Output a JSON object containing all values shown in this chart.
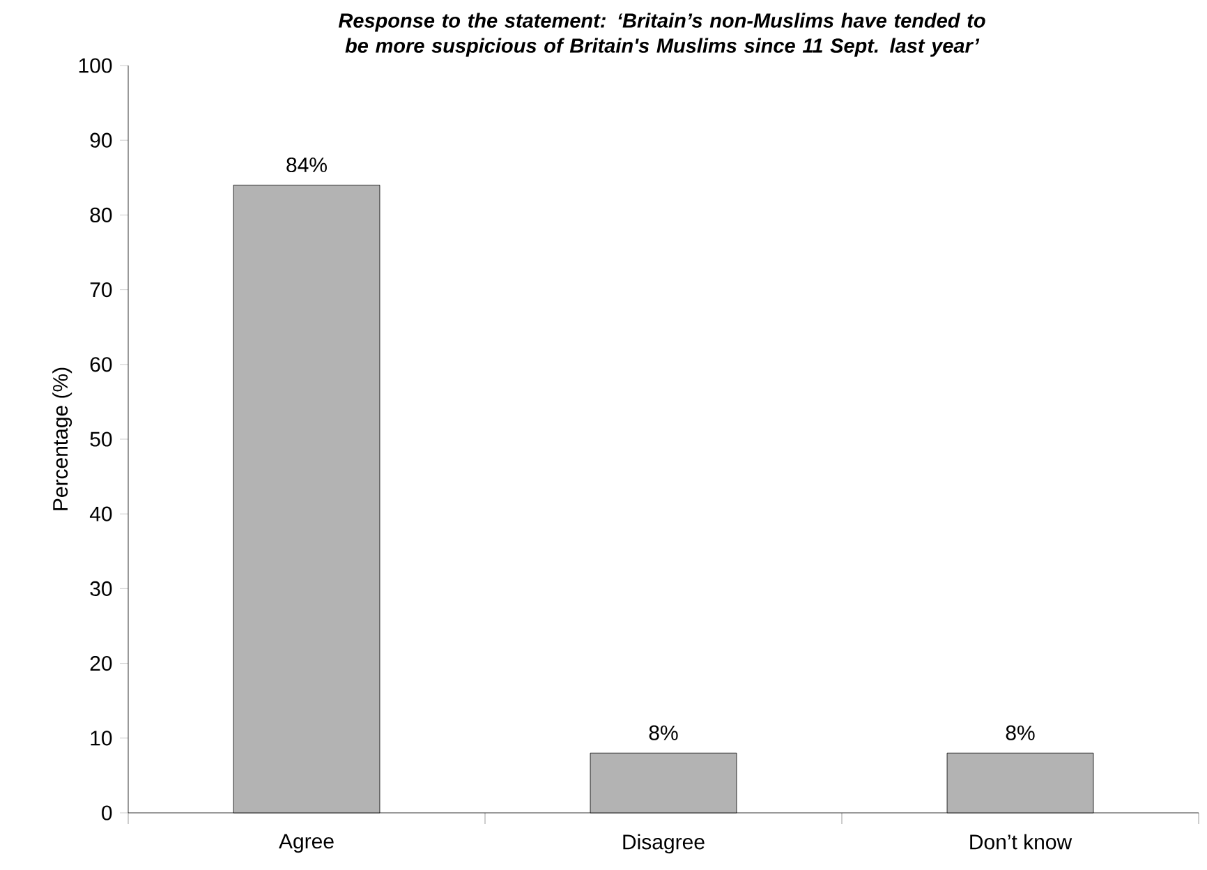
{
  "chart_data": {
    "type": "bar",
    "title": "Response to the statement: ‘Britain’s non-Muslims have tended to be more suspicious of Britain's Muslims since 11 Sept. last year’",
    "ylabel": "Percentage (%)",
    "categories": [
      "Agree",
      "Disagree",
      "Don’t know"
    ],
    "values": [
      84,
      8,
      8
    ],
    "value_labels": [
      "84%",
      "8%",
      "8%"
    ],
    "color": "#b3b3b3",
    "ylim": [
      0,
      100
    ],
    "yticks": [
      0,
      10,
      20,
      30,
      40,
      50,
      60,
      70,
      80,
      90,
      100
    ],
    "grid": false
  }
}
